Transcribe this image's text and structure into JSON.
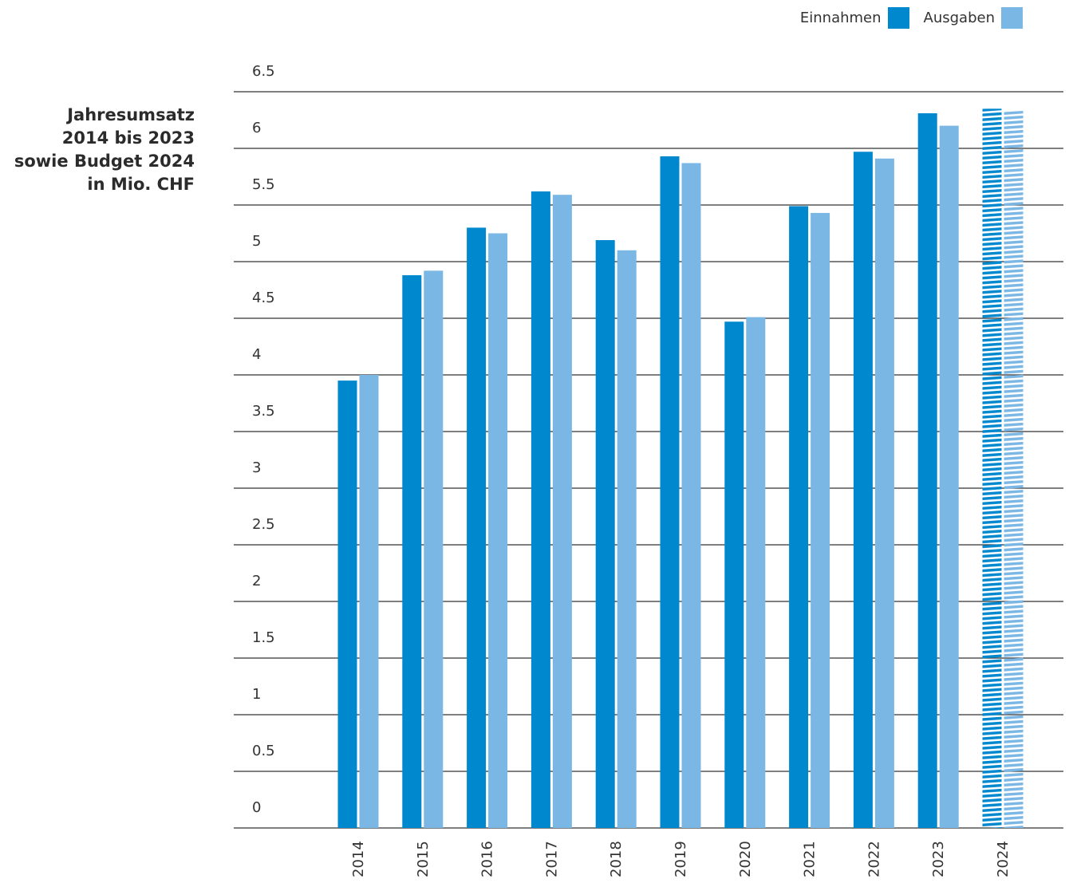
{
  "chart_data": {
    "type": "bar",
    "title_lines": [
      "Jahresumsatz",
      "2014 bis 2023",
      "sowie Budget 2024",
      "in Mio. CHF"
    ],
    "categories": [
      "2014",
      "2015",
      "2016",
      "2017",
      "2018",
      "2019",
      "2020",
      "2021",
      "2022",
      "2023",
      "2024"
    ],
    "series": [
      {
        "name": "Einnahmen",
        "color": "#0088cf",
        "values": [
          3.95,
          4.88,
          5.3,
          5.62,
          5.19,
          5.93,
          4.47,
          5.49,
          5.97,
          6.31,
          6.35
        ]
      },
      {
        "name": "Ausgaben",
        "color": "#7ab7e5",
        "values": [
          4.0,
          4.92,
          5.25,
          5.59,
          5.1,
          5.87,
          4.51,
          5.43,
          5.91,
          6.2,
          6.33
        ]
      }
    ],
    "hatched_categories": [
      "2024"
    ],
    "yticks": [
      "0",
      "0.5",
      "1",
      "1.5",
      "2",
      "2.5",
      "3",
      "3.5",
      "4",
      "4.5",
      "5",
      "5.5",
      "6",
      "6.5"
    ],
    "ylim": [
      0,
      6.5
    ],
    "grid": true,
    "legend_position": "top-right"
  }
}
